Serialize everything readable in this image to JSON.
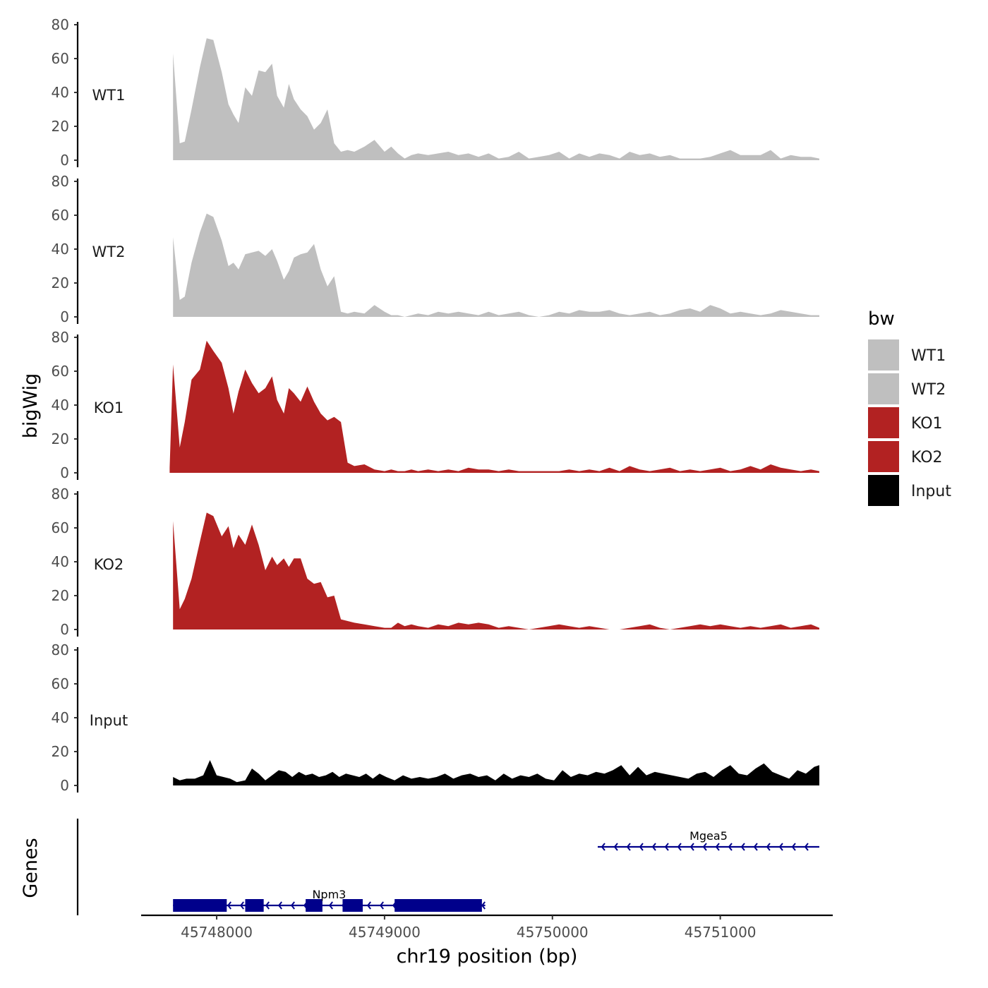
{
  "chart_data": {
    "type": "area",
    "title": "",
    "ylabel": "bigWig",
    "genes_label": "Genes",
    "xlabel": "chr19 position (bp)",
    "xlim": [
      45747550,
      45751670
    ],
    "x_ticks": [
      45748000,
      45749000,
      45750000,
      45751000
    ],
    "x_tick_labels": [
      "45748000",
      "45749000",
      "45750000",
      "45751000"
    ],
    "ylim": [
      0,
      80
    ],
    "y_ticks": [
      0,
      20,
      40,
      60,
      80
    ],
    "y_tick_labels": [
      "0",
      "20",
      "40",
      "60",
      "80"
    ],
    "legend": {
      "title": "bw",
      "position": "right",
      "entries": [
        {
          "label": "WT1",
          "color": "#bfbfbf"
        },
        {
          "label": "WT2",
          "color": "#bfbfbf"
        },
        {
          "label": "KO1",
          "color": "#b22222"
        },
        {
          "label": "KO2",
          "color": "#b22222"
        },
        {
          "label": "Input",
          "color": "#000000"
        }
      ]
    },
    "series": [
      {
        "name": "WT1",
        "color": "#bfbfbf",
        "x": [
          45747740,
          45747780,
          45747810,
          45747850,
          45747900,
          45747940,
          45747980,
          45748030,
          45748070,
          45748100,
          45748130,
          45748170,
          45748210,
          45748250,
          45748290,
          45748330,
          45748360,
          45748400,
          45748430,
          45748460,
          45748500,
          45748540,
          45748580,
          45748620,
          45748660,
          45748700,
          45748740,
          45748780,
          45748820,
          45748880,
          45748940,
          45749000,
          45749040,
          45749080,
          45749120,
          45749160,
          45749200,
          45749260,
          45749320,
          45749380,
          45749440,
          45749500,
          45749560,
          45749620,
          45749680,
          45749740,
          45749800,
          45749860,
          45749920,
          45749980,
          45750040,
          45750100,
          45750160,
          45750220,
          45750280,
          45750340,
          45750400,
          45750460,
          45750520,
          45750580,
          45750640,
          45750700,
          45750760,
          45750820,
          45750880,
          45750940,
          45751000,
          45751060,
          45751120,
          45751180,
          45751240,
          45751300,
          45751360,
          45751420,
          45751480,
          45751540,
          45751590
        ],
        "values": [
          63,
          10,
          11,
          30,
          55,
          72,
          71,
          52,
          33,
          27,
          22,
          43,
          38,
          53,
          52,
          57,
          38,
          31,
          45,
          36,
          30,
          26,
          18,
          22,
          30,
          10,
          5,
          6,
          5,
          8,
          12,
          5,
          8,
          4,
          1,
          3,
          4,
          3,
          4,
          5,
          3,
          4,
          2,
          4,
          1,
          2,
          5,
          1,
          2,
          3,
          5,
          1,
          4,
          2,
          4,
          3,
          1,
          5,
          3,
          4,
          2,
          3,
          1,
          1,
          1,
          2,
          4,
          6,
          3,
          3,
          3,
          6,
          1,
          3,
          2,
          2,
          1
        ]
      },
      {
        "name": "WT2",
        "color": "#bfbfbf",
        "x": [
          45747740,
          45747780,
          45747810,
          45747850,
          45747900,
          45747940,
          45747980,
          45748030,
          45748070,
          45748100,
          45748130,
          45748170,
          45748210,
          45748250,
          45748290,
          45748330,
          45748360,
          45748400,
          45748430,
          45748460,
          45748500,
          45748540,
          45748580,
          45748620,
          45748660,
          45748700,
          45748740,
          45748780,
          45748820,
          45748880,
          45748940,
          45749000,
          45749040,
          45749080,
          45749120,
          45749160,
          45749200,
          45749260,
          45749320,
          45749380,
          45749440,
          45749500,
          45749560,
          45749620,
          45749680,
          45749740,
          45749800,
          45749860,
          45749920,
          45749980,
          45750040,
          45750100,
          45750160,
          45750220,
          45750280,
          45750340,
          45750400,
          45750460,
          45750520,
          45750580,
          45750640,
          45750700,
          45750760,
          45750820,
          45750880,
          45750940,
          45751000,
          45751060,
          45751120,
          45751180,
          45751240,
          45751300,
          45751360,
          45751420,
          45751480,
          45751540,
          45751590
        ],
        "values": [
          47,
          10,
          12,
          32,
          50,
          61,
          59,
          45,
          30,
          32,
          28,
          37,
          38,
          39,
          36,
          40,
          33,
          22,
          27,
          35,
          37,
          38,
          43,
          28,
          18,
          24,
          3,
          2,
          3,
          2,
          7,
          3,
          1,
          1,
          0,
          1,
          2,
          1,
          3,
          2,
          3,
          2,
          1,
          3,
          1,
          2,
          3,
          1,
          0,
          1,
          3,
          2,
          4,
          3,
          3,
          4,
          2,
          1,
          2,
          3,
          1,
          2,
          4,
          5,
          3,
          7,
          5,
          2,
          3,
          2,
          1,
          2,
          4,
          3,
          2,
          1,
          1
        ]
      },
      {
        "name": "KO1",
        "color": "#b22222",
        "x": [
          45747720,
          45747740,
          45747780,
          45747810,
          45747850,
          45747900,
          45747940,
          45747980,
          45748030,
          45748070,
          45748100,
          45748130,
          45748170,
          45748210,
          45748250,
          45748290,
          45748330,
          45748360,
          45748400,
          45748430,
          45748460,
          45748500,
          45748540,
          45748580,
          45748620,
          45748660,
          45748700,
          45748740,
          45748780,
          45748820,
          45748880,
          45748940,
          45749000,
          45749040,
          45749080,
          45749120,
          45749160,
          45749200,
          45749260,
          45749320,
          45749380,
          45749440,
          45749500,
          45749560,
          45749620,
          45749680,
          45749740,
          45749800,
          45749860,
          45749920,
          45749980,
          45750040,
          45750100,
          45750160,
          45750220,
          45750280,
          45750340,
          45750400,
          45750460,
          45750520,
          45750580,
          45750640,
          45750700,
          45750760,
          45750820,
          45750880,
          45750940,
          45751000,
          45751060,
          45751120,
          45751180,
          45751240,
          45751300,
          45751360,
          45751420,
          45751480,
          45751540,
          45751590
        ],
        "values": [
          3,
          64,
          15,
          30,
          55,
          61,
          78,
          72,
          65,
          50,
          35,
          48,
          61,
          53,
          47,
          50,
          57,
          43,
          35,
          50,
          47,
          42,
          51,
          42,
          35,
          31,
          33,
          30,
          6,
          4,
          5,
          2,
          1,
          2,
          1,
          1,
          2,
          1,
          2,
          1,
          2,
          1,
          3,
          2,
          2,
          1,
          2,
          1,
          1,
          1,
          1,
          1,
          2,
          1,
          2,
          1,
          3,
          1,
          4,
          2,
          1,
          2,
          3,
          1,
          2,
          1,
          2,
          3,
          1,
          2,
          4,
          2,
          5,
          3,
          2,
          1,
          2,
          1
        ]
      },
      {
        "name": "KO2",
        "color": "#b22222",
        "x": [
          45747740,
          45747780,
          45747810,
          45747850,
          45747900,
          45747940,
          45747980,
          45748030,
          45748070,
          45748100,
          45748130,
          45748170,
          45748210,
          45748250,
          45748290,
          45748330,
          45748360,
          45748400,
          45748430,
          45748460,
          45748500,
          45748540,
          45748580,
          45748620,
          45748660,
          45748700,
          45748740,
          45748780,
          45748820,
          45748880,
          45748940,
          45749000,
          45749040,
          45749080,
          45749120,
          45749160,
          45749200,
          45749260,
          45749320,
          45749380,
          45749440,
          45749500,
          45749560,
          45749620,
          45749680,
          45749740,
          45749800,
          45749860,
          45749920,
          45749980,
          45750040,
          45750100,
          45750160,
          45750220,
          45750280,
          45750340,
          45750400,
          45750460,
          45750520,
          45750580,
          45750640,
          45750700,
          45750760,
          45750820,
          45750880,
          45750940,
          45751000,
          45751060,
          45751120,
          45751180,
          45751240,
          45751300,
          45751360,
          45751420,
          45751480,
          45751540,
          45751590
        ],
        "values": [
          64,
          12,
          18,
          30,
          52,
          69,
          67,
          55,
          61,
          48,
          56,
          50,
          62,
          50,
          35,
          43,
          38,
          42,
          37,
          42,
          42,
          30,
          27,
          28,
          19,
          20,
          6,
          5,
          4,
          3,
          2,
          1,
          1,
          4,
          2,
          3,
          2,
          1,
          3,
          2,
          4,
          3,
          4,
          3,
          1,
          2,
          1,
          0,
          1,
          2,
          3,
          2,
          1,
          2,
          1,
          0,
          0,
          1,
          2,
          3,
          1,
          0,
          1,
          2,
          3,
          2,
          3,
          2,
          1,
          2,
          1,
          2,
          3,
          1,
          2,
          3,
          1
        ]
      },
      {
        "name": "Input",
        "color": "#000000",
        "x": [
          45747740,
          45747780,
          45747820,
          45747870,
          45747920,
          45747960,
          45748000,
          45748040,
          45748080,
          45748120,
          45748170,
          45748210,
          45748250,
          45748290,
          45748330,
          45748370,
          45748410,
          45748450,
          45748490,
          45748530,
          45748570,
          45748610,
          45748650,
          45748690,
          45748730,
          45748770,
          45748810,
          45748850,
          45748890,
          45748930,
          45748970,
          45749010,
          45749060,
          45749110,
          45749160,
          45749210,
          45749260,
          45749310,
          45749360,
          45749410,
          45749460,
          45749510,
          45749560,
          45749610,
          45749660,
          45749710,
          45749760,
          45749810,
          45749860,
          45749910,
          45749960,
          45750010,
          45750060,
          45750110,
          45750160,
          45750210,
          45750260,
          45750310,
          45750360,
          45750410,
          45750460,
          45750510,
          45750560,
          45750610,
          45750660,
          45750710,
          45750760,
          45750810,
          45750860,
          45750910,
          45750960,
          45751010,
          45751060,
          45751110,
          45751160,
          45751210,
          45751260,
          45751310,
          45751360,
          45751410,
          45751460,
          45751510,
          45751560,
          45751590
        ],
        "values": [
          5,
          3,
          4,
          4,
          6,
          15,
          6,
          5,
          4,
          2,
          3,
          10,
          7,
          3,
          6,
          9,
          8,
          5,
          8,
          6,
          7,
          5,
          6,
          8,
          5,
          7,
          6,
          5,
          7,
          4,
          7,
          5,
          3,
          6,
          4,
          5,
          4,
          5,
          7,
          4,
          6,
          7,
          5,
          6,
          3,
          7,
          4,
          6,
          5,
          7,
          4,
          3,
          9,
          5,
          7,
          6,
          8,
          7,
          9,
          12,
          6,
          11,
          6,
          8,
          7,
          6,
          5,
          4,
          7,
          8,
          5,
          9,
          12,
          7,
          6,
          10,
          13,
          8,
          6,
          4,
          9,
          7,
          11,
          12
        ]
      }
    ],
    "genes": [
      {
        "name": "Mgea5",
        "strand": "-",
        "start": 45750270,
        "end": 45751590,
        "exons": []
      },
      {
        "name": "Npm3",
        "strand": "-",
        "start": 45747740,
        "end": 45749600,
        "exons": [
          [
            45747740,
            45748060
          ],
          [
            45748170,
            45748280
          ],
          [
            45748530,
            45748630
          ],
          [
            45748750,
            45748870
          ],
          [
            45749060,
            45749580
          ]
        ]
      }
    ]
  }
}
